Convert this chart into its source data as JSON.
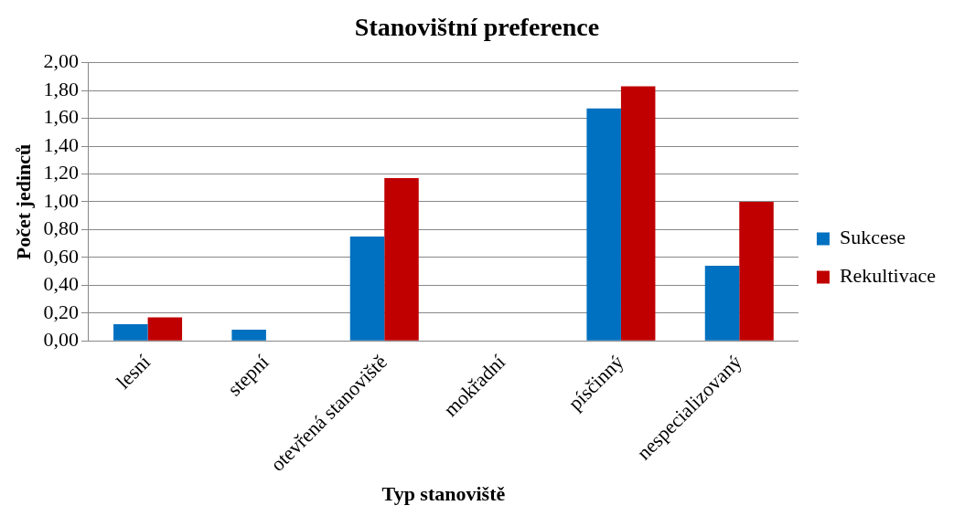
{
  "chart_data": {
    "type": "bar",
    "title": "Stanovištní preference",
    "xlabel": "Typ stanoviště",
    "ylabel": "Počet jedinců",
    "categories": [
      "lesní",
      "stepní",
      "otevřená stanoviště",
      "mokřadní",
      "písčinný",
      "nespecializovaný"
    ],
    "series": [
      {
        "name": "Sukcese",
        "color": "#0070c0",
        "values": [
          0.12,
          0.08,
          0.75,
          0,
          1.67,
          0.54
        ]
      },
      {
        "name": "Rekultivace",
        "color": "#c00000",
        "values": [
          0.17,
          0,
          1.17,
          0,
          1.83,
          1.0
        ]
      }
    ],
    "ylim": [
      0,
      2
    ],
    "yticks": [
      {
        "value": 0,
        "label": "0,00"
      },
      {
        "value": 0.2,
        "label": "0,20"
      },
      {
        "value": 0.4,
        "label": "0,40"
      },
      {
        "value": 0.6,
        "label": "0,60"
      },
      {
        "value": 0.8,
        "label": "0,80"
      },
      {
        "value": 1,
        "label": "1,00"
      },
      {
        "value": 1.2,
        "label": "1,20"
      },
      {
        "value": 1.4,
        "label": "1,40"
      },
      {
        "value": 1.6,
        "label": "1,60"
      },
      {
        "value": 1.8,
        "label": "1,80"
      },
      {
        "value": 2,
        "label": "2,00"
      }
    ],
    "grid": "y",
    "legend": "right"
  }
}
